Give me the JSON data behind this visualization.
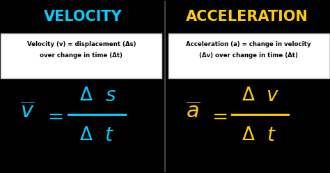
{
  "bg_color": "#000000",
  "divider_color": "#444444",
  "left_title": "VELOCITY",
  "right_title": "ACCELERATION",
  "left_title_color": "#00cfff",
  "right_title_color": "#ffcc00",
  "left_box_text1": "Velocity (v) = displacement (Δs)",
  "left_box_text2": "over change in time (Δt)",
  "right_box_text1": "Acceleration (a) = change in velocity",
  "right_box_text2": "(Δv) over change in time (Δt)",
  "box_bg": "#ffffff",
  "box_text_color": "#000000",
  "formula_color_left": "#00cfff",
  "formula_color_right": "#ffcc00",
  "fig_width": 4.74,
  "fig_height": 2.48,
  "dpi": 100
}
